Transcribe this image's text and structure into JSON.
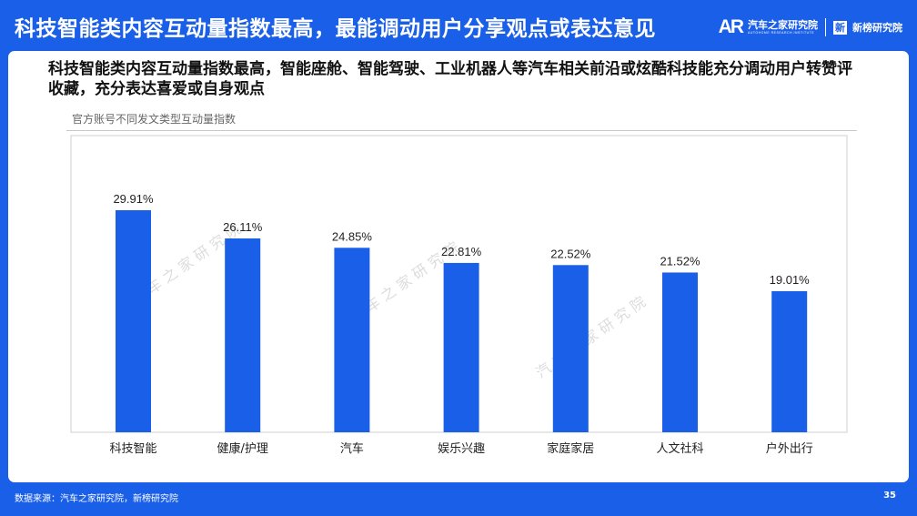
{
  "header": {
    "title": "科技智能类内容互动量指数最高，最能调动用户分享观点或表达意见",
    "logo_mark": "AR",
    "logo_org": "汽车之家研究院",
    "logo_org_en": "AUTOHOME RESEARCH INSTITUTE",
    "logo_partner_icon": "新",
    "logo_partner": "新榜研究院"
  },
  "subtitle": "科技智能类内容互动量指数最高，智能座舱、智能驾驶、工业机器人等汽车相关前沿或炫酷科技能充分调动用户转赞评收藏，充分表达喜爱或自身观点",
  "watermark": "汽 车 之 家 研 究 院",
  "chart_data": {
    "type": "bar",
    "title": "官方账号不同发文类型互动量指数",
    "categories": [
      "科技智能",
      "健康/护理",
      "汽车",
      "娱乐兴趣",
      "家庭家居",
      "人文社科",
      "户外出行"
    ],
    "values": [
      29.91,
      26.11,
      24.85,
      22.81,
      22.52,
      21.52,
      19.01
    ],
    "value_labels": [
      "29.91%",
      "26.11%",
      "24.85%",
      "22.81%",
      "22.52%",
      "21.52%",
      "19.01%"
    ],
    "unit": "%",
    "ylim": [
      0,
      35
    ],
    "grid": false,
    "legend": "none",
    "bar_color": "#1a5fe8"
  },
  "footer": {
    "source": "数据来源：汽车之家研究院，新榜研究院",
    "page": "35"
  }
}
